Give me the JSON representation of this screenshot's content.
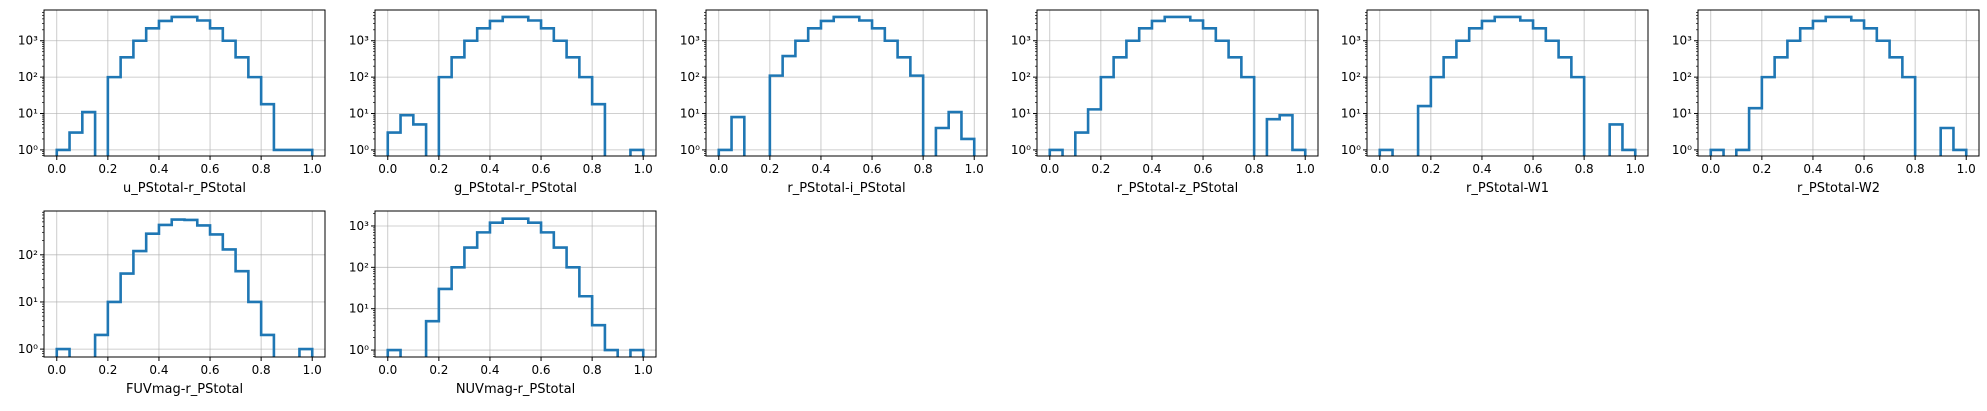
{
  "chart_data": [
    {
      "type": "histogram",
      "xlabel": "u_PStotal-r_PStotal",
      "bin_edges": [
        0,
        0.05,
        0.1,
        0.15,
        0.2,
        0.25,
        0.3,
        0.35,
        0.4,
        0.45,
        0.5,
        0.55,
        0.6,
        0.65,
        0.7,
        0.75,
        0.8,
        0.85,
        0.9,
        0.95,
        1.0
      ],
      "counts": [
        1,
        3,
        11,
        0,
        100,
        350,
        1000,
        2200,
        3500,
        4500,
        4500,
        3600,
        2200,
        1000,
        350,
        100,
        18,
        1,
        1,
        1
      ],
      "xlim": [
        -0.05,
        1.05
      ],
      "xticks": [
        "0.0",
        "0.2",
        "0.4",
        "0.6",
        "0.8",
        "1.0"
      ],
      "yscale": "log",
      "yticks": [
        "10⁰",
        "10¹",
        "10²",
        "10³"
      ],
      "grid": true,
      "color": "#1f77b4"
    },
    {
      "type": "histogram",
      "xlabel": "g_PStotal-r_PStotal",
      "bin_edges": [
        0,
        0.05,
        0.1,
        0.15,
        0.2,
        0.25,
        0.3,
        0.35,
        0.4,
        0.45,
        0.5,
        0.55,
        0.6,
        0.65,
        0.7,
        0.75,
        0.8,
        0.85,
        0.9,
        0.95,
        1.0
      ],
      "counts": [
        3,
        9,
        5,
        0,
        100,
        350,
        1000,
        2200,
        3500,
        4500,
        4500,
        3600,
        2200,
        1000,
        350,
        100,
        18,
        0,
        0,
        1
      ],
      "xlim": [
        -0.05,
        1.05
      ],
      "xticks": [
        "0.0",
        "0.2",
        "0.4",
        "0.6",
        "0.8",
        "1.0"
      ],
      "yscale": "log",
      "yticks": [
        "10⁰",
        "10¹",
        "10²",
        "10³"
      ],
      "grid": true,
      "color": "#1f77b4"
    },
    {
      "type": "histogram",
      "xlabel": "r_PStotal-i_PStotal",
      "bin_edges": [
        0,
        0.05,
        0.1,
        0.15,
        0.2,
        0.25,
        0.3,
        0.35,
        0.4,
        0.45,
        0.5,
        0.55,
        0.6,
        0.65,
        0.7,
        0.75,
        0.8,
        0.85,
        0.9,
        0.95,
        1.0
      ],
      "counts": [
        1,
        8,
        0,
        0,
        110,
        380,
        1000,
        2200,
        3500,
        4500,
        4500,
        3600,
        2200,
        1000,
        350,
        110,
        0,
        4,
        11,
        2
      ],
      "xlim": [
        -0.05,
        1.05
      ],
      "xticks": [
        "0.0",
        "0.2",
        "0.4",
        "0.6",
        "0.8",
        "1.0"
      ],
      "yscale": "log",
      "yticks": [
        "10⁰",
        "10¹",
        "10²",
        "10³"
      ],
      "grid": true,
      "color": "#1f77b4"
    },
    {
      "type": "histogram",
      "xlabel": "r_PStotal-z_PStotal",
      "bin_edges": [
        0,
        0.05,
        0.1,
        0.15,
        0.2,
        0.25,
        0.3,
        0.35,
        0.4,
        0.45,
        0.5,
        0.55,
        0.6,
        0.65,
        0.7,
        0.75,
        0.8,
        0.85,
        0.9,
        0.95,
        1.0
      ],
      "counts": [
        1,
        0,
        3,
        13,
        100,
        350,
        1000,
        2200,
        3500,
        4500,
        4500,
        3600,
        2200,
        1000,
        350,
        100,
        0,
        7,
        9,
        1
      ],
      "xlim": [
        -0.05,
        1.05
      ],
      "xticks": [
        "0.0",
        "0.2",
        "0.4",
        "0.6",
        "0.8",
        "1.0"
      ],
      "yscale": "log",
      "yticks": [
        "10⁰",
        "10¹",
        "10²",
        "10³"
      ],
      "grid": true,
      "color": "#1f77b4"
    },
    {
      "type": "histogram",
      "xlabel": "r_PStotal-W1",
      "bin_edges": [
        0,
        0.05,
        0.1,
        0.15,
        0.2,
        0.25,
        0.3,
        0.35,
        0.4,
        0.45,
        0.5,
        0.55,
        0.6,
        0.65,
        0.7,
        0.75,
        0.8,
        0.85,
        0.9,
        0.95,
        1.0
      ],
      "counts": [
        1,
        0,
        0,
        16,
        100,
        350,
        1000,
        2200,
        3500,
        4500,
        4500,
        3600,
        2200,
        1000,
        350,
        100,
        0,
        0,
        5,
        1
      ],
      "xlim": [
        -0.05,
        1.05
      ],
      "xticks": [
        "0.0",
        "0.2",
        "0.4",
        "0.6",
        "0.8",
        "1.0"
      ],
      "yscale": "log",
      "yticks": [
        "10⁰",
        "10¹",
        "10²",
        "10³"
      ],
      "grid": true,
      "color": "#1f77b4"
    },
    {
      "type": "histogram",
      "xlabel": "r_PStotal-W2",
      "bin_edges": [
        0,
        0.05,
        0.1,
        0.15,
        0.2,
        0.25,
        0.3,
        0.35,
        0.4,
        0.45,
        0.5,
        0.55,
        0.6,
        0.65,
        0.7,
        0.75,
        0.8,
        0.85,
        0.9,
        0.95,
        1.0
      ],
      "counts": [
        1,
        0,
        1,
        14,
        100,
        350,
        1000,
        2200,
        3500,
        4500,
        4500,
        3600,
        2200,
        1000,
        350,
        100,
        0,
        0,
        4,
        1
      ],
      "xlim": [
        -0.05,
        1.05
      ],
      "xticks": [
        "0.0",
        "0.2",
        "0.4",
        "0.6",
        "0.8",
        "1.0"
      ],
      "yscale": "log",
      "yticks": [
        "10⁰",
        "10¹",
        "10²",
        "10³"
      ],
      "grid": true,
      "color": "#1f77b4"
    },
    {
      "type": "histogram",
      "xlabel": "FUVmag-r_PStotal",
      "bin_edges": [
        0,
        0.05,
        0.1,
        0.15,
        0.2,
        0.25,
        0.3,
        0.35,
        0.4,
        0.45,
        0.5,
        0.55,
        0.6,
        0.65,
        0.7,
        0.75,
        0.8,
        0.85,
        0.9,
        0.95,
        1.0
      ],
      "counts": [
        1,
        0,
        0,
        2,
        10,
        40,
        120,
        280,
        430,
        560,
        550,
        420,
        270,
        130,
        45,
        10,
        2,
        0,
        0,
        1
      ],
      "xlim": [
        -0.05,
        1.05
      ],
      "xticks": [
        "0.0",
        "0.2",
        "0.4",
        "0.6",
        "0.8",
        "1.0"
      ],
      "yscale": "log",
      "yticks": [
        "10⁰",
        "10¹",
        "10²"
      ],
      "grid": true,
      "color": "#1f77b4"
    },
    {
      "type": "histogram",
      "xlabel": "NUVmag-r_PStotal",
      "bin_edges": [
        0,
        0.05,
        0.1,
        0.15,
        0.2,
        0.25,
        0.3,
        0.35,
        0.4,
        0.45,
        0.5,
        0.55,
        0.6,
        0.65,
        0.7,
        0.75,
        0.8,
        0.85,
        0.9,
        0.95,
        1.0
      ],
      "counts": [
        1,
        0,
        0,
        5,
        30,
        100,
        300,
        700,
        1200,
        1500,
        1500,
        1200,
        700,
        300,
        100,
        20,
        4,
        1,
        0,
        1
      ],
      "xlim": [
        -0.05,
        1.05
      ],
      "xticks": [
        "0.0",
        "0.2",
        "0.4",
        "0.6",
        "0.8",
        "1.0"
      ],
      "yscale": "log",
      "yticks": [
        "10⁰",
        "10¹",
        "10²",
        "10³"
      ],
      "grid": true,
      "color": "#1f77b4"
    }
  ]
}
